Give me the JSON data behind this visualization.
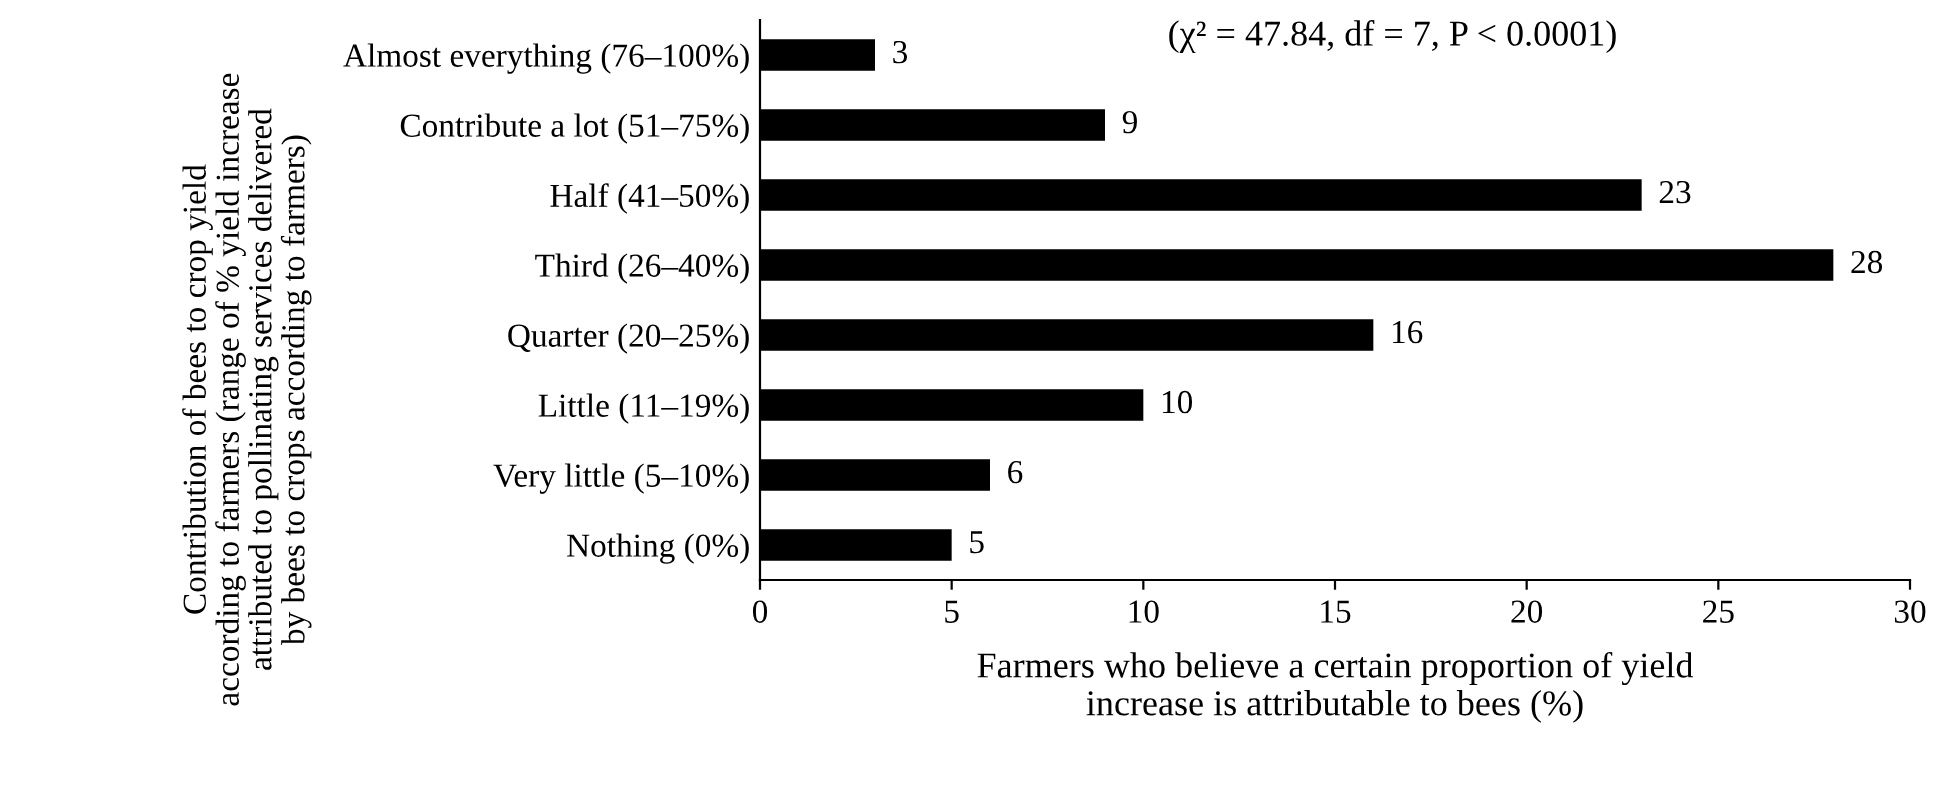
{
  "chart_data": {
    "type": "bar",
    "orientation": "horizontal",
    "categories": [
      "Almost everything (76–100%)",
      "Contribute a lot (51–75%)",
      "Half (41–50%)",
      "Third (26–40%)",
      "Quarter (20–25%)",
      "Little (11–19%)",
      "Very little (5–10%)",
      "Nothing (0%)"
    ],
    "values": [
      3,
      9,
      23,
      28,
      16,
      10,
      6,
      5
    ],
    "color": "#000000",
    "data_labels": true,
    "xlim": [
      0,
      30
    ],
    "xticks": [
      0,
      5,
      10,
      15,
      20,
      25,
      30
    ],
    "grid": false,
    "xlabel": "Farmers who believe a certain proportion of yield\nincrease is attributable to bees (%)",
    "ylabel": "Contribution of bees to crop yield\naccording to farmers (range of % yield increase\nattributed to pollinating services delivered\nby bees to crops according to farmers)",
    "annotations": [
      "(χ² = 47.84, df = 7, P < 0.0001)"
    ]
  }
}
